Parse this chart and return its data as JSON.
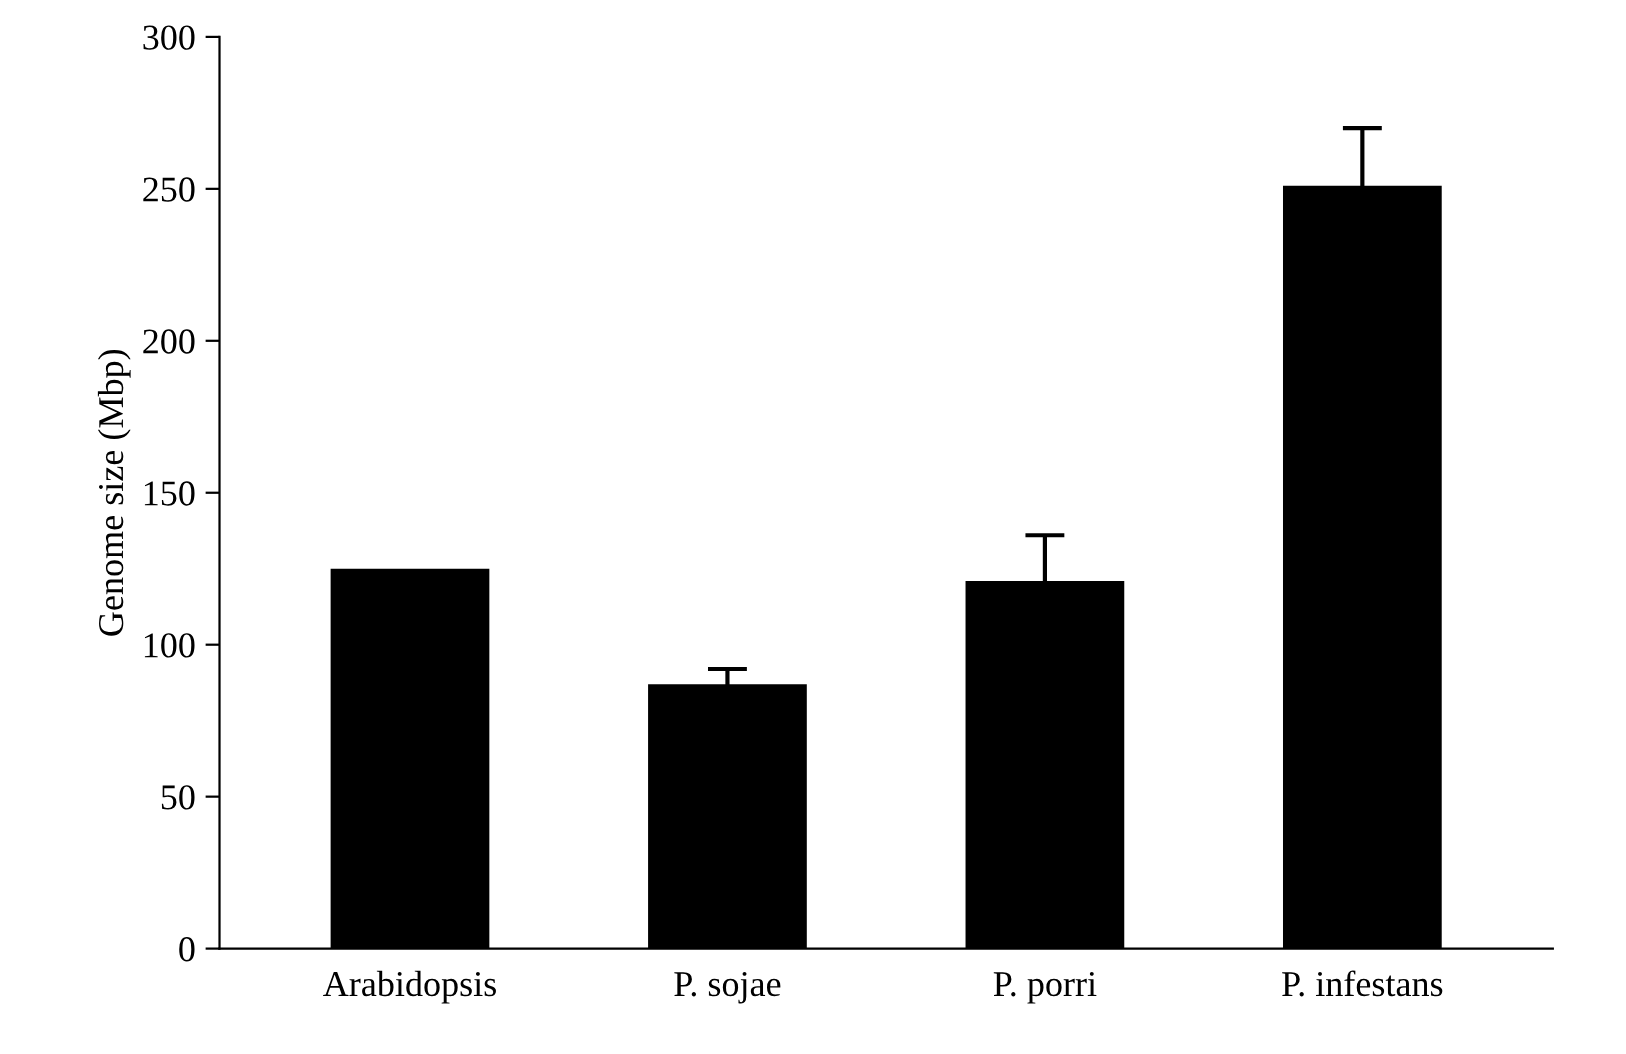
{
  "chart_data": {
    "type": "bar",
    "ylabel": "Genome size (Mbp)",
    "categories": [
      "Arabidopsis",
      "P. sojae",
      "P. porri",
      "P. infestans"
    ],
    "values": [
      125,
      87,
      121,
      251
    ],
    "errors": [
      null,
      5,
      15,
      19
    ],
    "color": "#000000",
    "ylim": [
      0,
      300
    ],
    "yticks": [
      0,
      50,
      100,
      150,
      200,
      250,
      300
    ],
    "grid": false
  }
}
